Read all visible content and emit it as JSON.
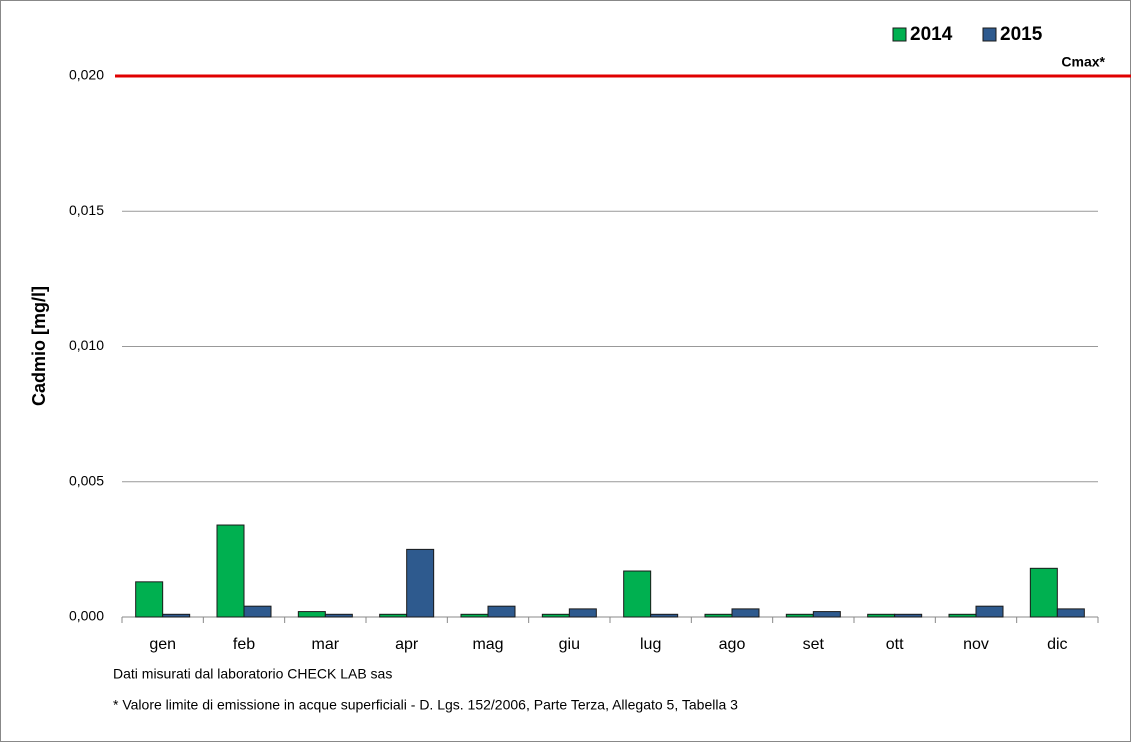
{
  "chart_data": {
    "type": "bar",
    "y_label": "Cadmio [mg/l]",
    "categories": [
      "gen",
      "feb",
      "mar",
      "apr",
      "mag",
      "giu",
      "lug",
      "ago",
      "set",
      "ott",
      "nov",
      "dic"
    ],
    "series": [
      {
        "name": "2014",
        "color": "#00b050",
        "values": [
          0.0013,
          0.0034,
          0.0002,
          0.0001,
          0.0001,
          0.0001,
          0.0017,
          0.0001,
          0.0001,
          0.0001,
          0.0001,
          0.0018
        ]
      },
      {
        "name": "2015",
        "color": "#2e5a8e",
        "values": [
          0.0001,
          0.0004,
          0.0001,
          0.0025,
          0.0004,
          0.0003,
          0.0001,
          0.0003,
          0.0002,
          0.0001,
          0.0004,
          0.0003
        ]
      }
    ],
    "ylim": [
      0,
      0.02
    ],
    "yticks": [
      {
        "value": 0,
        "label": "0,000"
      },
      {
        "value": 0.005,
        "label": "0,005"
      },
      {
        "value": 0.01,
        "label": "0,010"
      },
      {
        "value": 0.015,
        "label": "0,015"
      },
      {
        "value": 0.02,
        "label": "0,020"
      }
    ],
    "grid": true,
    "legend": "top-right",
    "reference_line": {
      "value": 0.02,
      "label": "Cmax*",
      "color": "#e00000"
    },
    "notes": [
      "Dati misurati dal laboratorio CHECK LAB sas",
      "* Valore limite di emissione in acque superficiali - D. Lgs. 152/2006, Parte Terza, Allegato 5, Tabella 3"
    ]
  }
}
